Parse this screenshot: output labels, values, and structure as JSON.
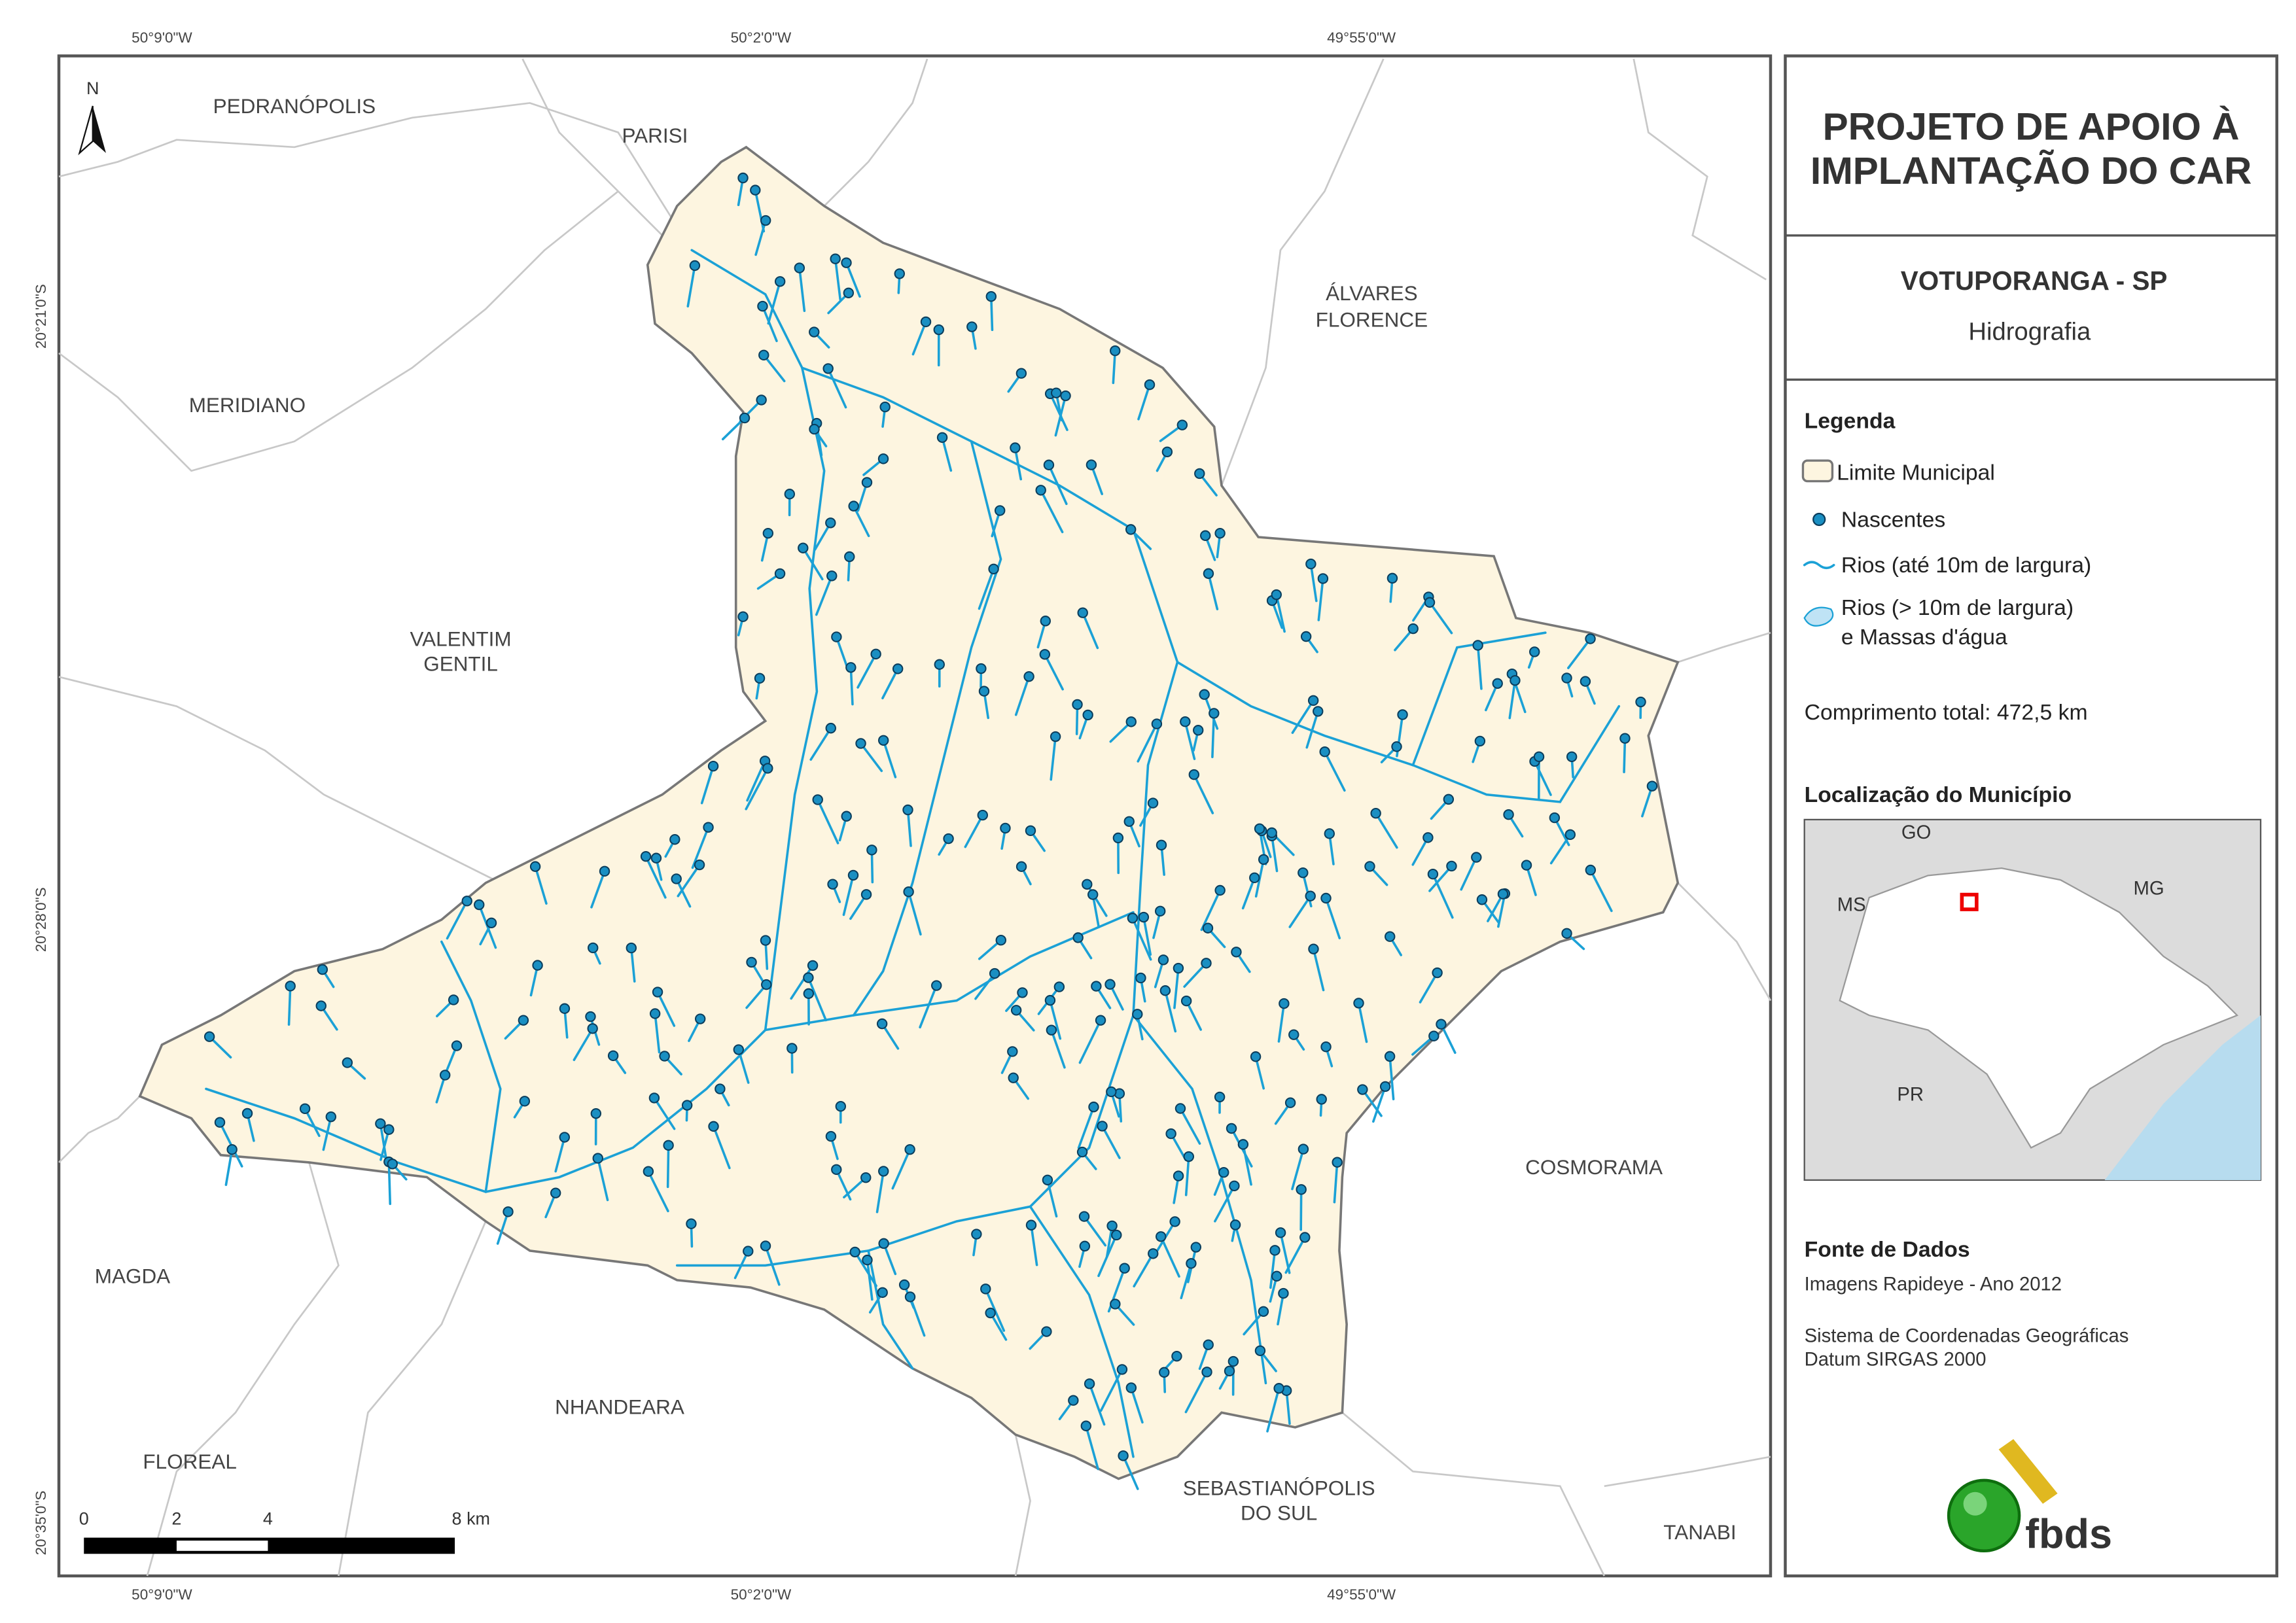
{
  "map": {
    "north_label": "N",
    "coordinates": {
      "top": [
        "50°9'0\"W",
        "50°2'0\"W",
        "49°55'0\"W"
      ],
      "bottom": [
        "50°9'0\"W",
        "50°2'0\"W",
        "49°55'0\"W"
      ],
      "left": [
        "20°21'0\"S",
        "20°28'0\"S",
        "20°35'0\"S"
      ]
    },
    "neighbors": [
      [
        "PEDRANÓPOLIS"
      ],
      [
        "PARISI"
      ],
      [
        "ÁLVARES",
        "FLORENCE"
      ],
      [
        "MERIDIANO"
      ],
      [
        "VALENTIM",
        "GENTIL"
      ],
      [
        "COSMORAMA"
      ],
      [
        "MAGDA"
      ],
      [
        "NHANDEARA"
      ],
      [
        "FLOREAL"
      ],
      [
        "SEBASTIANÓPOLIS",
        "DO SUL"
      ],
      [
        "TANABI"
      ]
    ],
    "scale_bar": [
      "0",
      "2",
      "4",
      "8 km"
    ]
  },
  "panel": {
    "title": [
      "PROJETO DE APOIO À",
      "IMPLANTAÇÃO DO CAR"
    ],
    "municipality": "VOTUPORANGA - SP",
    "theme": "Hidrografia",
    "legend": {
      "title": "Legenda",
      "items": [
        "Limite Municipal",
        "Nascentes",
        "Rios (até 10m de largura)",
        [
          "Rios (> 10m de largura)",
          "e Massas d'água"
        ]
      ],
      "total_length": "Comprimento total: 472,5 km"
    },
    "location": {
      "title": "Localização do Município",
      "labels": [
        "GO",
        "MS",
        "MG",
        "PR"
      ]
    },
    "sources": {
      "title": "Fonte de Dados",
      "lines": [
        "Imagens Rapideye - Ano 2012",
        "Sistema de Coordenadas Geográficas",
        "Datum SIRGAS 2000"
      ]
    },
    "logo": "fbds"
  }
}
